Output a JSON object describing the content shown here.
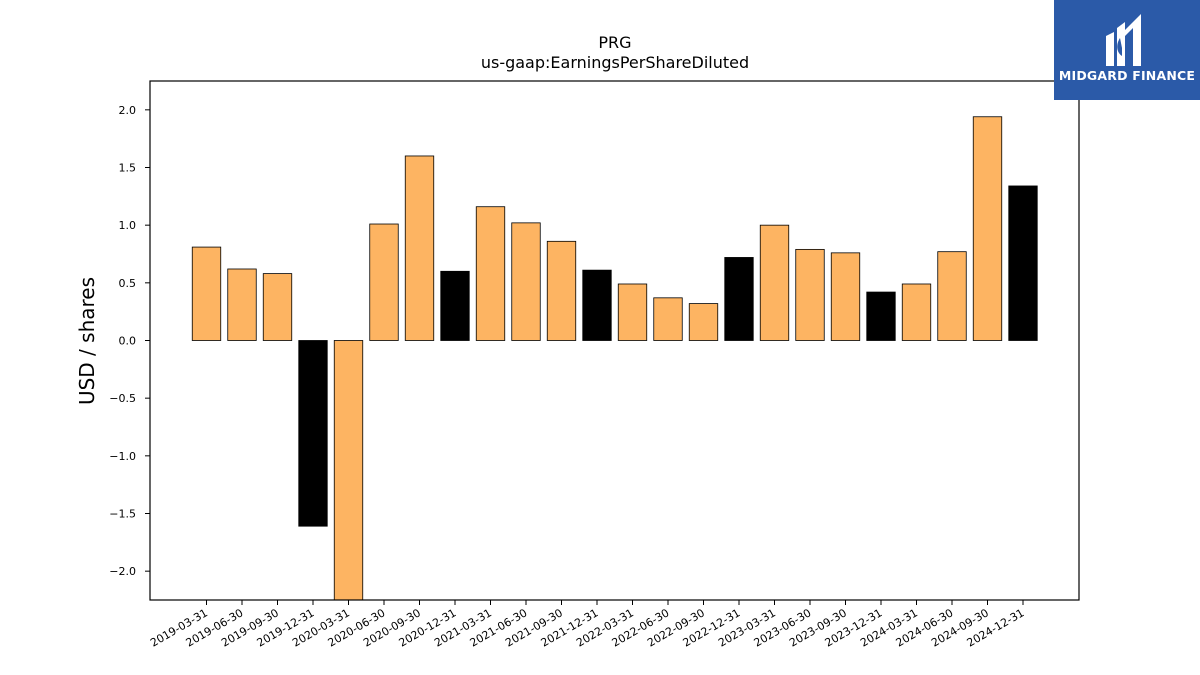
{
  "chart_data": {
    "type": "bar",
    "title": "PRG",
    "subtitle": "us-gaap:EarningsPerShareDiluted",
    "xlabel": "",
    "ylabel": "USD / shares",
    "ylim": [
      -2.25,
      2.25
    ],
    "yticks": [
      -2.0,
      -1.5,
      -1.0,
      -0.5,
      0.0,
      0.5,
      1.0,
      1.5,
      2.0
    ],
    "categories": [
      "2019-03-31",
      "2019-06-30",
      "2019-09-30",
      "2019-12-31",
      "2020-03-31",
      "2020-06-30",
      "2020-09-30",
      "2020-12-31",
      "2021-03-31",
      "2021-06-30",
      "2021-09-30",
      "2021-12-31",
      "2022-03-31",
      "2022-06-30",
      "2022-09-30",
      "2022-12-31",
      "2023-03-31",
      "2023-06-30",
      "2023-09-30",
      "2023-12-31",
      "2024-03-31",
      "2024-06-30",
      "2024-09-30",
      "2024-12-31"
    ],
    "values": [
      0.81,
      0.62,
      0.58,
      -1.61,
      -2.4,
      1.01,
      1.6,
      0.6,
      1.16,
      1.02,
      0.86,
      0.61,
      0.49,
      0.37,
      0.32,
      0.72,
      1.0,
      0.79,
      0.76,
      0.42,
      0.49,
      0.77,
      1.94,
      1.34
    ],
    "bar_colors": [
      "#fdb462",
      "#fdb462",
      "#fdb462",
      "#000000",
      "#fdb462",
      "#fdb462",
      "#fdb462",
      "#000000",
      "#fdb462",
      "#fdb462",
      "#fdb462",
      "#000000",
      "#fdb462",
      "#fdb462",
      "#fdb462",
      "#000000",
      "#fdb462",
      "#fdb462",
      "#fdb462",
      "#000000",
      "#fdb462",
      "#fdb462",
      "#fdb462",
      "#000000"
    ],
    "grid": false,
    "legend": "none"
  },
  "logo": {
    "text": "MIDGARD FINANCE",
    "icon": "midgard-logo-icon",
    "background": "#2b5aa8"
  }
}
